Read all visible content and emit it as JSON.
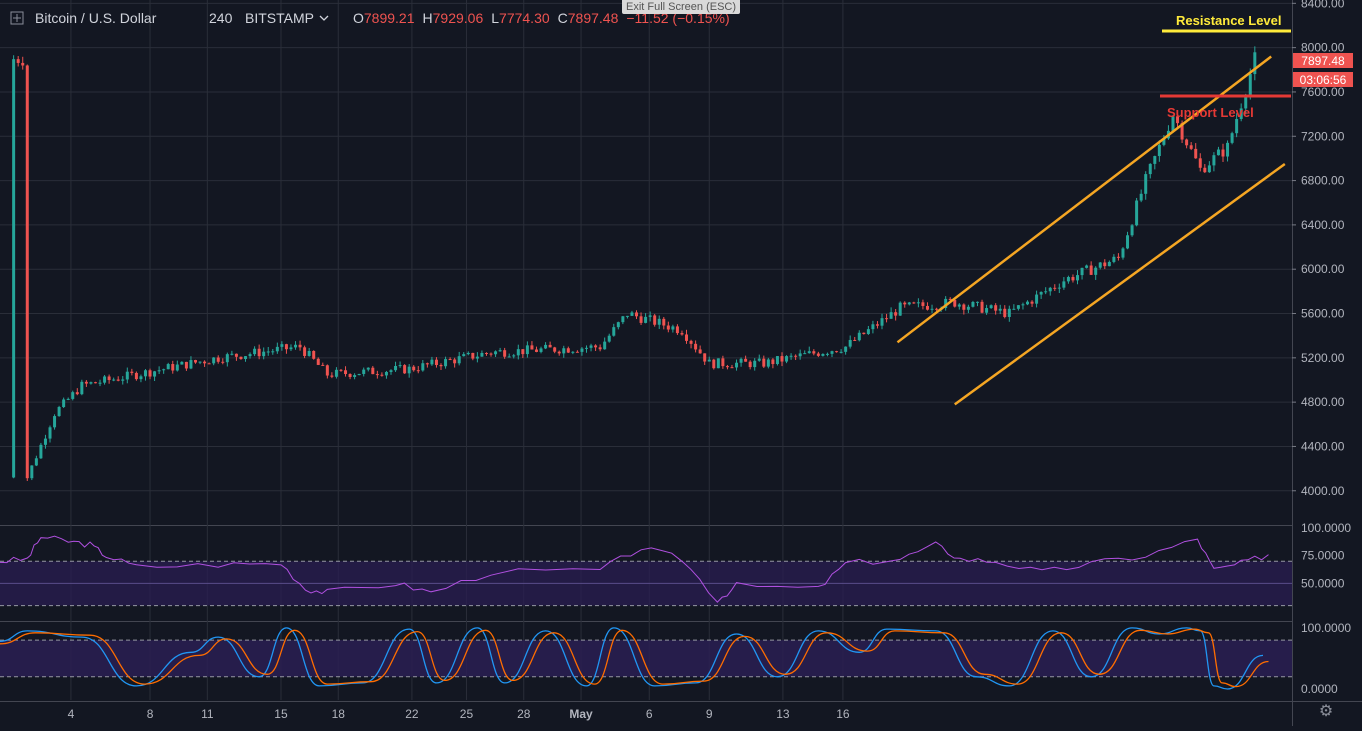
{
  "legend": {
    "symbol": "Bitcoin / U.S. Dollar",
    "interval": "240",
    "exchange": "BITSTAMP",
    "o_label": "O",
    "o_value": "7899.21",
    "h_label": "H",
    "h_value": "7929.06",
    "l_label": "L",
    "l_value": "7774.30",
    "c_label": "C",
    "c_value": "7897.48",
    "change": "−11.52 (−0.15%)"
  },
  "fullscreen_hint": "Exit Full Screen (ESC)",
  "price_axis": {
    "last_price": "7897.48",
    "countdown": "03:06:56"
  },
  "annotations": {
    "resistance_label": "Resistance Level",
    "support_label": "Support Level"
  },
  "colors": {
    "background": "#131722",
    "grid": "#2a2e39",
    "up": "#26a69a",
    "down": "#ef5350",
    "channel": "#f5a623",
    "resistance": "#ffeb3b",
    "support": "#e53935",
    "rsi": "#b050e0",
    "stoch_k": "#2196f3",
    "stoch_d": "#ff6d00",
    "band_fill": "#2a1e52"
  },
  "chart_data": [
    {
      "type": "candlestick",
      "series": [
        {
          "name": "Bitcoin / U.S. Dollar",
          "interval": "240",
          "exchange": "BITSTAMP"
        }
      ],
      "x_ticks": [
        "4",
        "8",
        "11",
        "15",
        "18",
        "22",
        "25",
        "28",
        "May",
        "6",
        "9",
        "13",
        "16"
      ],
      "y_ticks": [
        "4000.00",
        "4400.00",
        "4800.00",
        "5200.00",
        "5600.00",
        "6000.00",
        "6400.00",
        "6800.00",
        "7200.00",
        "7600.00",
        "8000.00",
        "8400.00"
      ],
      "ylim": [
        3700,
        8430
      ],
      "key_points": {
        "x": [
          1,
          2,
          3,
          4,
          8,
          11,
          12,
          15,
          18,
          22,
          23,
          25,
          26,
          28,
          31,
          33,
          35,
          37,
          39,
          41,
          42,
          43,
          44,
          45,
          46
        ],
        "close": [
          4120,
          4700,
          4950,
          5000,
          5200,
          5300,
          5050,
          5100,
          5250,
          5300,
          5600,
          5450,
          5150,
          5150,
          5300,
          5650,
          5700,
          5600,
          5900,
          6100,
          6800,
          7400,
          6900,
          7100,
          7897.48
        ]
      },
      "last": {
        "open": 7899.21,
        "high": 7929.06,
        "low": 7774.3,
        "close": 7897.48
      },
      "annotations": [
        {
          "label": "Resistance Level",
          "y": 8220
        },
        {
          "label": "Support Level",
          "y": 7600
        },
        {
          "label": "ascending channel upper",
          "from": {
            "x": 32.9,
            "y": 5340
          },
          "to": {
            "x": 46.6,
            "y": 7920
          }
        },
        {
          "label": "ascending channel lower",
          "from": {
            "x": 35.0,
            "y": 4780
          },
          "to": {
            "x": 47.1,
            "y": 6950
          }
        }
      ],
      "grid": true
    },
    {
      "type": "line",
      "series": [
        {
          "name": ""
        }
      ],
      "y_ticks": [
        "100.0000",
        "75.0000",
        "50.0000"
      ],
      "ylim": [
        17,
        100
      ],
      "band": [
        30,
        70
      ],
      "x": [
        0,
        1,
        1.5,
        2.5,
        3.3,
        3.9,
        5,
        8,
        10.3,
        11.2,
        12,
        14.5,
        15.8,
        18,
        22,
        23.5,
        25,
        26.3,
        27,
        30,
        31,
        33,
        34.3,
        35.2,
        36.5,
        38.2,
        40,
        42,
        43.9,
        44.5,
        45.5,
        46.5
      ],
      "values": [
        70,
        72,
        92,
        88,
        85,
        75,
        65,
        67,
        68,
        45,
        42,
        50,
        42,
        60,
        62,
        82,
        72,
        35,
        48,
        45,
        68,
        72,
        85,
        72,
        70,
        60,
        68,
        75,
        90,
        62,
        68,
        76
      ],
      "grid": true
    },
    {
      "type": "line",
      "y_ticks": [
        "100.0000",
        "0.0000"
      ],
      "ylim": [
        -18,
        108
      ],
      "band": [
        20,
        80
      ],
      "series": [
        {
          "name": "",
          "x": [
            0,
            1,
            3,
            5,
            7,
            8,
            9.5,
            10.5,
            11.7,
            13.3,
            15,
            16,
            17.5,
            18.5,
            20,
            21.5,
            22.5,
            24,
            25.5,
            27,
            28.5,
            30,
            31.5,
            32.5,
            34.3,
            35.8,
            37,
            38.6,
            40,
            41.5,
            42.5,
            43.5,
            44,
            44.5,
            45,
            46.3
          ],
          "values": [
            78,
            95,
            85,
            5,
            60,
            85,
            20,
            100,
            5,
            10,
            98,
            10,
            100,
            10,
            95,
            5,
            100,
            5,
            10,
            90,
            20,
            95,
            60,
            98,
            95,
            20,
            5,
            95,
            20,
            100,
            90,
            100,
            95,
            5,
            0,
            55
          ]
        },
        {
          "name": "",
          "x": [
            0,
            1.3,
            3.3,
            5.3,
            7.3,
            8.3,
            9.8,
            10.8,
            12,
            13.6,
            15.3,
            16.3,
            17.8,
            18.8,
            20.3,
            21.8,
            22.8,
            24.3,
            25.8,
            27.3,
            28.8,
            30.3,
            31.8,
            32.8,
            34.6,
            36.1,
            37.3,
            38.9,
            40.3,
            41.8,
            42.8,
            43.8,
            44.3,
            44.8,
            45.3,
            46.5
          ],
          "values": [
            74,
            92,
            88,
            8,
            55,
            82,
            24,
            96,
            8,
            12,
            94,
            14,
            96,
            14,
            92,
            8,
            96,
            8,
            13,
            86,
            24,
            92,
            62,
            95,
            92,
            24,
            8,
            92,
            24,
            96,
            90,
            98,
            92,
            10,
            4,
            45
          ]
        }
      ],
      "grid": true
    }
  ]
}
